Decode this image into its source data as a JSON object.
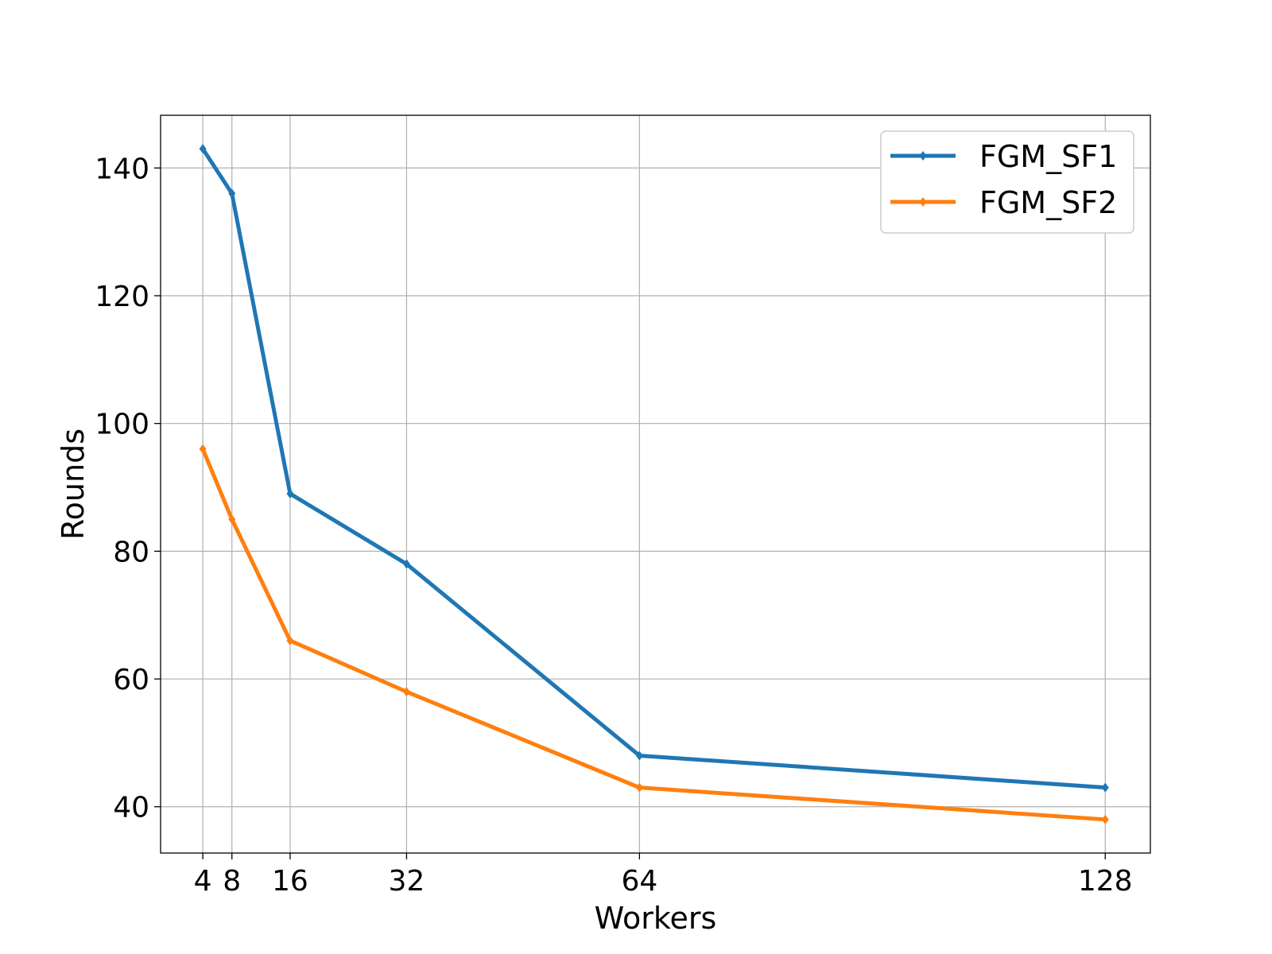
{
  "chart_data": {
    "type": "line",
    "title": "",
    "xlabel": "Workers",
    "ylabel": "Rounds",
    "x": [
      4,
      8,
      16,
      32,
      64,
      128
    ],
    "x_tick_labels": [
      "4",
      "8",
      "16",
      "32",
      "64",
      "128"
    ],
    "y_ticks": [
      40,
      60,
      80,
      100,
      120,
      140
    ],
    "y_tick_labels": [
      "40",
      "60",
      "80",
      "100",
      "120",
      "140"
    ],
    "xlim": [
      -1.8,
      134.2
    ],
    "ylim": [
      32.75,
      148.25
    ],
    "grid": true,
    "legend_position": "top-right",
    "series": [
      {
        "name": "FGM_SF1",
        "color": "#1f77b4",
        "marker": "diamond",
        "values": [
          143,
          136,
          89,
          78,
          48,
          43
        ]
      },
      {
        "name": "FGM_SF2",
        "color": "#ff7f0e",
        "marker": "diamond",
        "values": [
          96,
          85,
          66,
          58,
          43,
          38
        ]
      }
    ]
  }
}
